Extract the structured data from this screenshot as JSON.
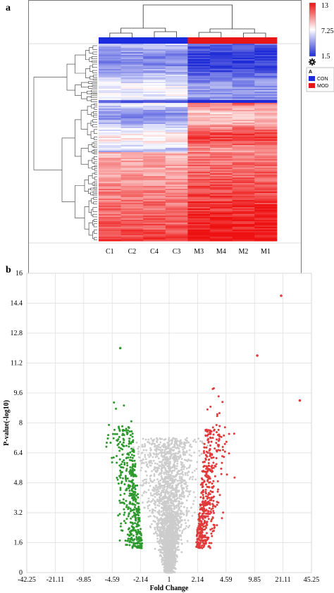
{
  "panels": {
    "a": "a",
    "b": "b"
  },
  "chart_data": [
    {
      "type": "heatmap",
      "columns": [
        "C1",
        "C2",
        "C4",
        "C3",
        "M3",
        "M4",
        "M2",
        "M1"
      ],
      "color_scale": {
        "min": 1.5,
        "mid": 7.25,
        "max": 13,
        "colors": [
          "#1f2bd6",
          "#ffffff",
          "#ee1111"
        ]
      },
      "annotation": {
        "title": "A",
        "groups": [
          {
            "label": "CON",
            "color": "#1a2be0"
          },
          {
            "label": "MOD",
            "color": "#e81616"
          }
        ],
        "column_groups": [
          "CON",
          "CON",
          "CON",
          "CON",
          "MOD",
          "MOD",
          "MOD",
          "MOD"
        ]
      },
      "legend_ticks": [
        "13",
        "7.25",
        "1.5"
      ],
      "settings_icon": "gear-icon"
    },
    {
      "type": "scatter",
      "xlabel": "Fold Change",
      "ylabel": "P-value(-log10)",
      "x_scale": "log2 (fold change) with symmetric tick labels",
      "x_ticks": [
        "-42.25",
        "-21.11",
        "-9.85",
        "-4.59",
        "-2.14",
        "1",
        "2.14",
        "4.59",
        "9.85",
        "21.11",
        "45.25"
      ],
      "y_ticks": [
        "0",
        "1.6",
        "3.2",
        "4.8",
        "6.4",
        "8",
        "9.6",
        "11.2",
        "12.8",
        "14.4",
        "16"
      ],
      "ylim": [
        0,
        16
      ],
      "xlim": [
        -42.25,
        45.25
      ],
      "grid": true,
      "series": [
        {
          "color": "#2e9a2e",
          "approx_count": 450,
          "x_range_log2": [
            -3.1,
            -0.9
          ]
        },
        {
          "color": "#e03a3a",
          "approx_count": 480,
          "x_range_log2": [
            0.9,
            3.0
          ]
        },
        {
          "color": "#cccccc",
          "approx_count": 5000,
          "x_range_log2": [
            -1.1,
            1.1
          ]
        }
      ],
      "outliers": [
        {
          "x": -3.7,
          "y": 12.0,
          "group": "down"
        },
        {
          "x": 20.1,
          "y": 14.8,
          "group": "up"
        },
        {
          "x": 10.6,
          "y": 11.6,
          "group": "up"
        },
        {
          "x": 33.1,
          "y": 9.2,
          "group": "up"
        }
      ]
    }
  ]
}
